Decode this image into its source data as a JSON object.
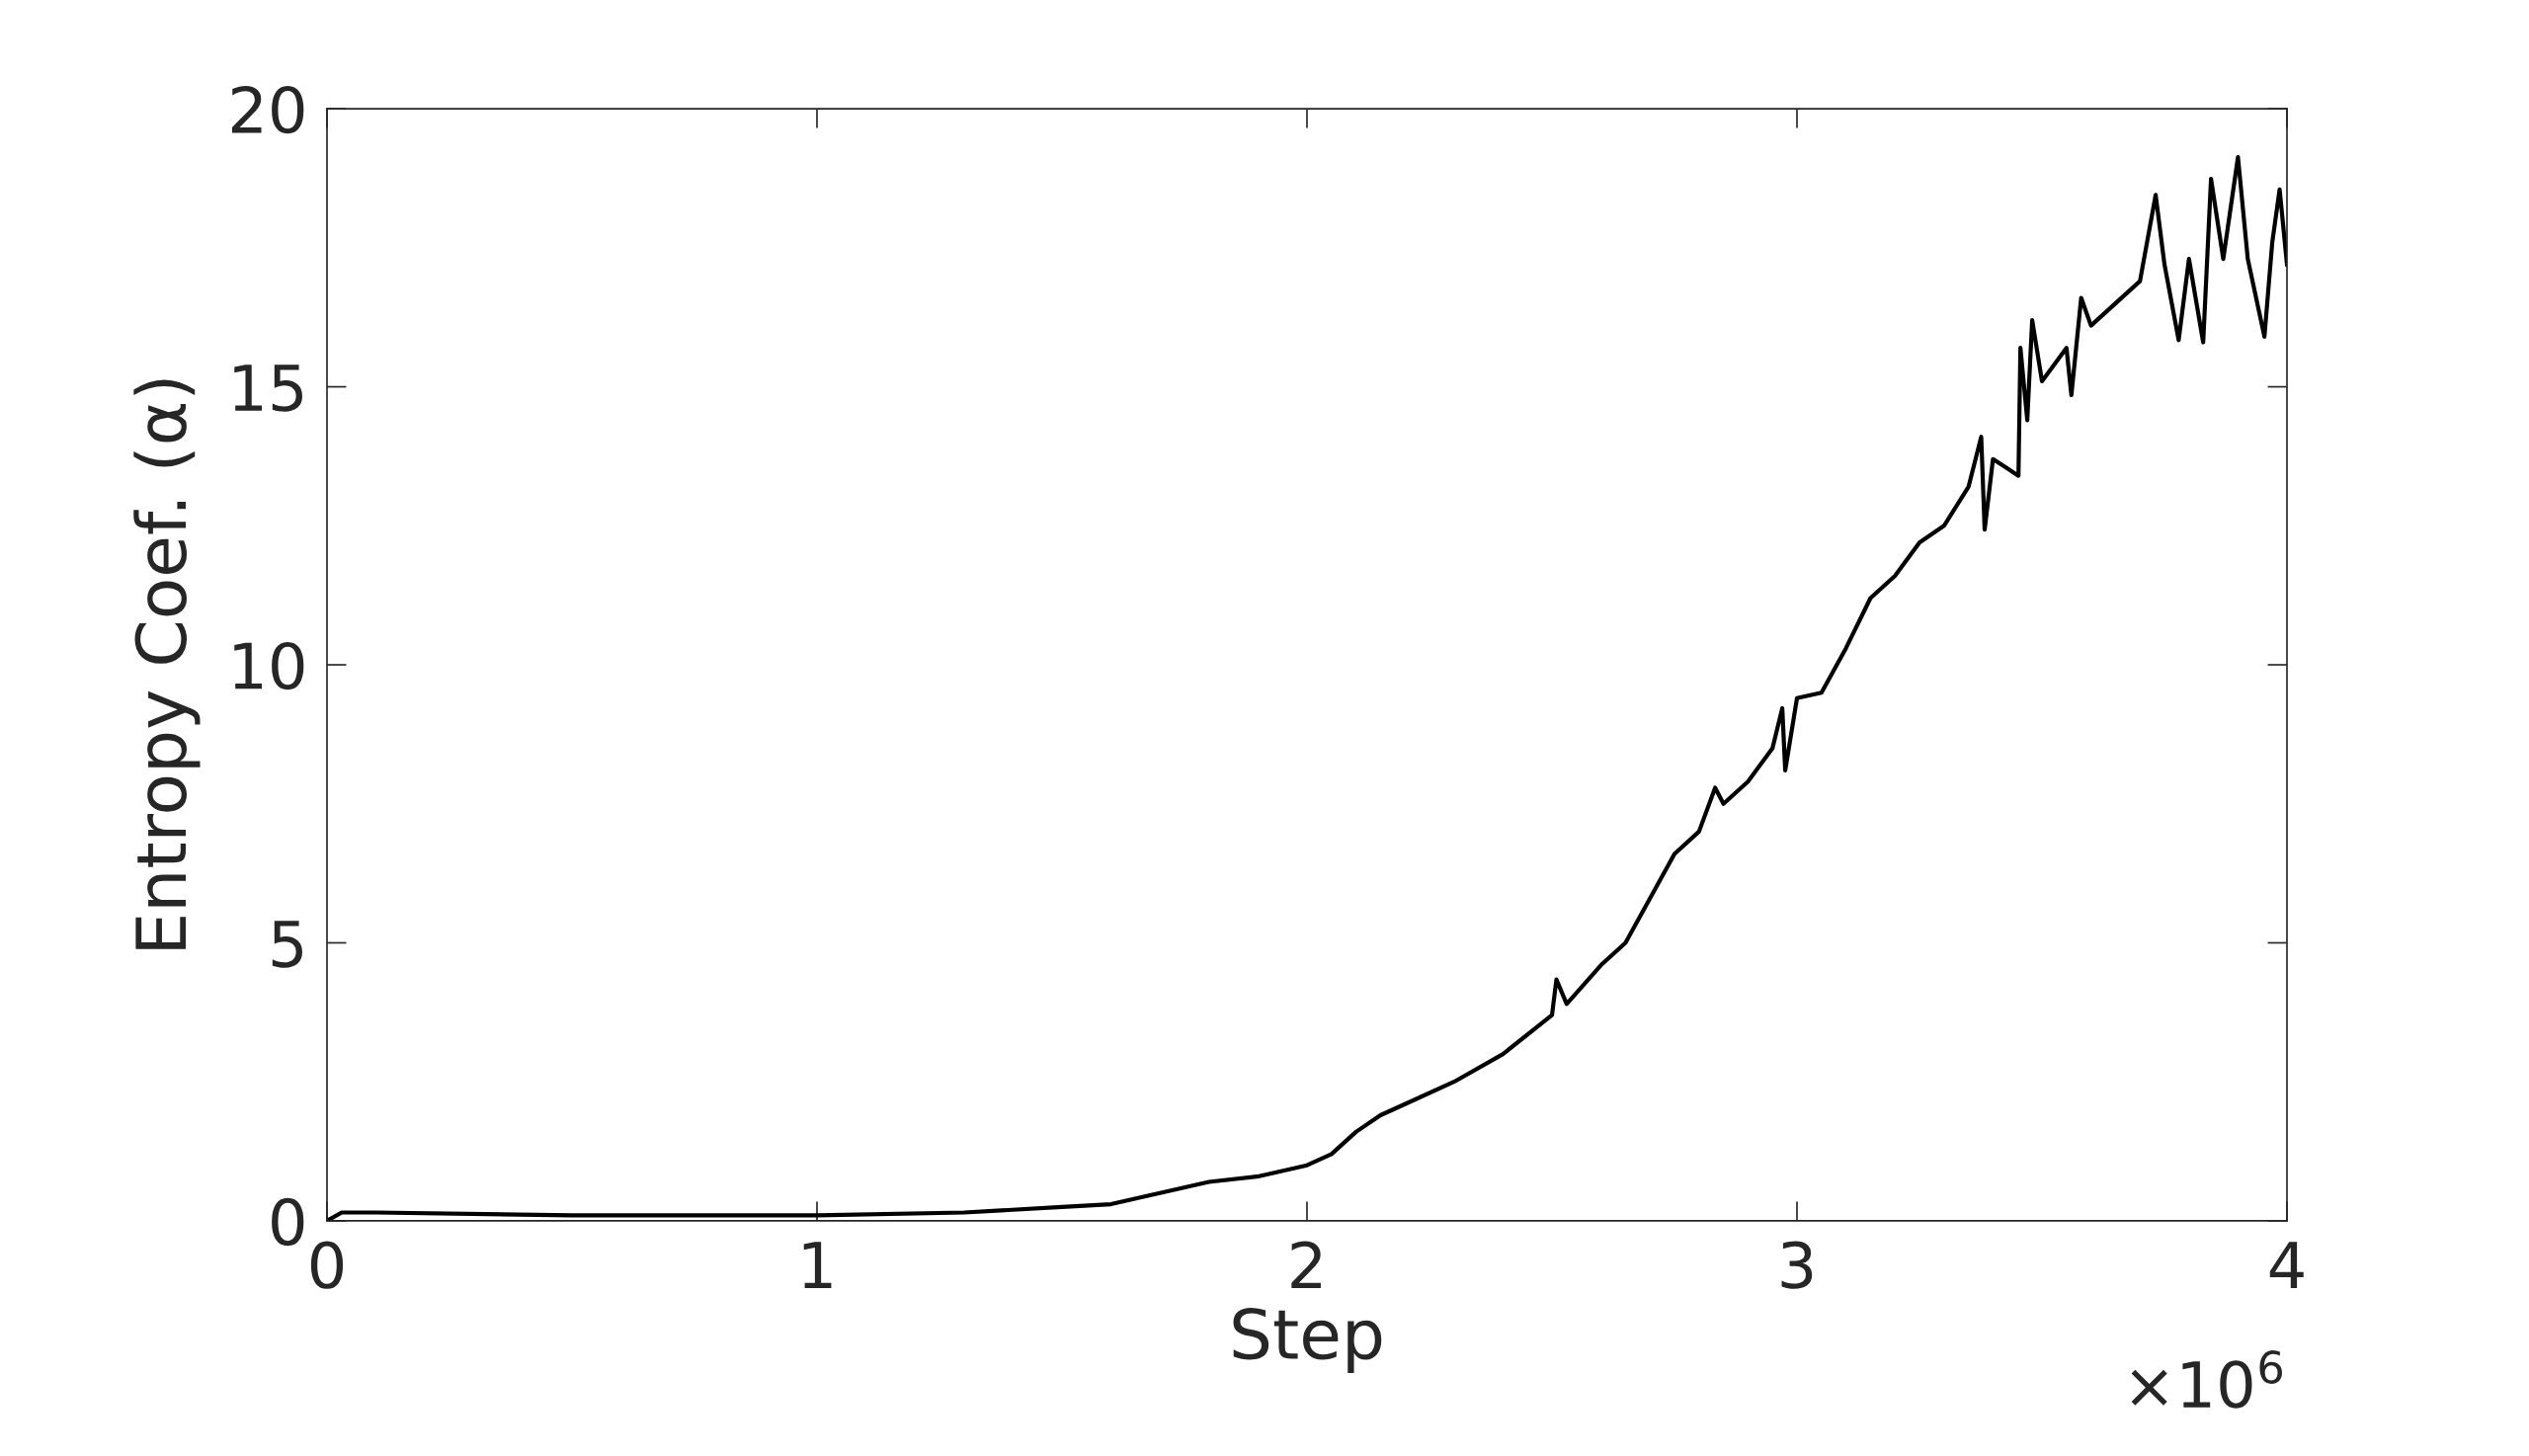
{
  "chart_data": {
    "type": "line",
    "xlabel": "Step",
    "ylabel": "Entropy Coef. (α)",
    "annotations": [
      "×10$^{6}$"
    ],
    "x": [
      0,
      0.03,
      0.1,
      0.5,
      1.0,
      1.3,
      1.5,
      1.6,
      1.7,
      1.8,
      1.9,
      2.0,
      2.05,
      2.1,
      2.15,
      2.2,
      2.3,
      2.4,
      2.5,
      2.509,
      2.53,
      2.6,
      2.65,
      2.7,
      2.75,
      2.8,
      2.833,
      2.85,
      2.9,
      2.95,
      2.97,
      2.976,
      3.0,
      3.05,
      3.1,
      3.15,
      3.2,
      3.25,
      3.3,
      3.35,
      3.376,
      3.383,
      3.4,
      3.452,
      3.456,
      3.47,
      3.48,
      3.5,
      3.55,
      3.56,
      3.58,
      3.6,
      3.65,
      3.7,
      3.732,
      3.75,
      3.779,
      3.8,
      3.829,
      3.845,
      3.87,
      3.9,
      3.92,
      3.954,
      3.97,
      3.985,
      4.0
    ],
    "series": [
      {
        "color": "#000000",
        "values": [
          0,
          0.15,
          0.15,
          0.1,
          0.1,
          0.15,
          0.25,
          0.3,
          0.5,
          0.7,
          0.8,
          1.0,
          1.2,
          1.6,
          1.9,
          2.1,
          2.5,
          3.0,
          3.7,
          4.34,
          3.9,
          4.6,
          5.0,
          5.8,
          6.6,
          7.0,
          7.79,
          7.5,
          7.9,
          8.5,
          9.22,
          8.1,
          9.4,
          9.5,
          10.3,
          11.2,
          11.6,
          12.2,
          12.5,
          13.2,
          14.1,
          12.43,
          13.7,
          13.4,
          15.7,
          14.4,
          16.2,
          15.1,
          15.7,
          14.85,
          16.6,
          16.1,
          16.5,
          16.9,
          18.45,
          17.2,
          15.84,
          17.3,
          15.8,
          18.74,
          17.3,
          19.13,
          17.3,
          15.9,
          17.6,
          18.55,
          17.2
        ]
      }
    ],
    "xlim": [
      0,
      4
    ],
    "xticks": [
      0,
      1,
      2,
      3,
      4
    ],
    "ylim": [
      0,
      20
    ],
    "yticks": [
      0,
      5,
      10,
      15,
      20
    ],
    "grid": false,
    "marker": "none",
    "line_style": "solid"
  }
}
